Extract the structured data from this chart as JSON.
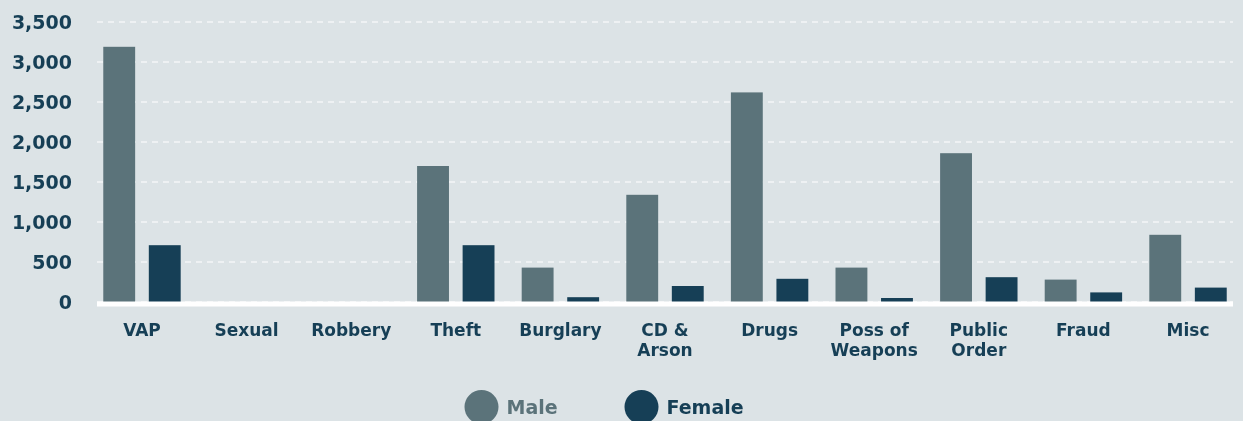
{
  "chart_data": {
    "type": "bar",
    "categories": [
      "VAP",
      "Sexual",
      "Robbery",
      "Theft",
      "Burglary",
      "CD & Arson",
      "Drugs",
      "Poss of Weapons",
      "Public Order",
      "Fraud",
      "Misc"
    ],
    "series": [
      {
        "name": "Male",
        "color": "#5b737a",
        "values": [
          3190,
          null,
          null,
          1700,
          430,
          1340,
          2620,
          430,
          1860,
          280,
          840
        ]
      },
      {
        "name": "Female",
        "color": "#163f56",
        "values": [
          710,
          null,
          null,
          710,
          60,
          200,
          290,
          50,
          310,
          120,
          180
        ]
      }
    ],
    "ylim": [
      0,
      3500
    ],
    "yticks": [
      {
        "value": 0,
        "label": "0"
      },
      {
        "value": 500,
        "label": "500"
      },
      {
        "value": 1000,
        "label": "1,000"
      },
      {
        "value": 1500,
        "label": "1,500"
      },
      {
        "value": 2000,
        "label": "2,000"
      },
      {
        "value": 2500,
        "label": "2,500"
      },
      {
        "value": 3000,
        "label": "3,000"
      },
      {
        "value": 3500,
        "label": "3,500"
      }
    ],
    "grid": "y",
    "legend": "bottom"
  }
}
